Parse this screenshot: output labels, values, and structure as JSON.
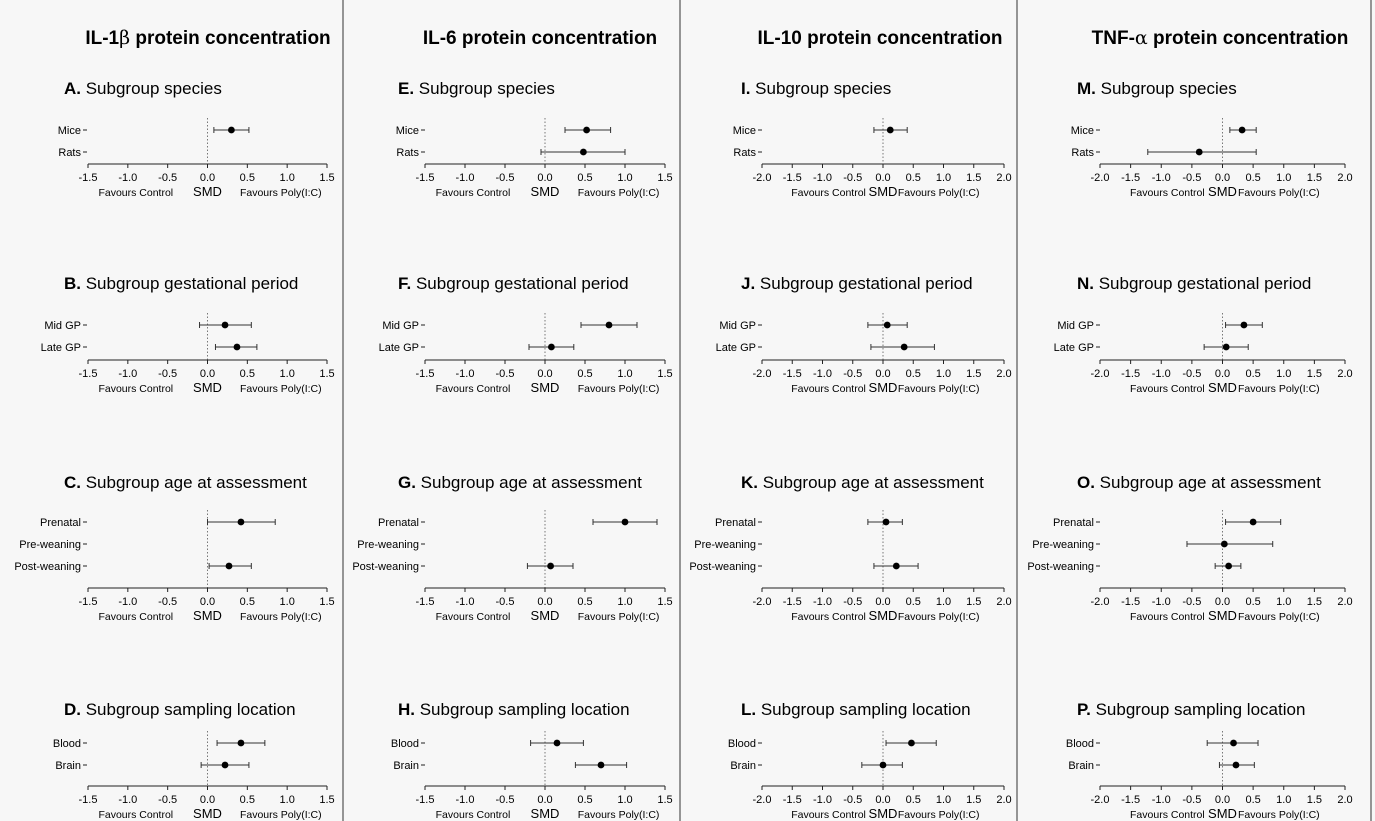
{
  "figure": {
    "columns": [
      {
        "header_pre": "IL-1",
        "header_greek": "β",
        "header_post": " protein concentration"
      },
      {
        "header_pre": "IL-6",
        "header_greek": "",
        "header_post": " protein concentration"
      },
      {
        "header_pre": "IL-10",
        "header_greek": "",
        "header_post": " protein concentration"
      },
      {
        "header_pre": "TNF-",
        "header_greek": "α",
        "header_post": " protein concentration"
      }
    ],
    "footer_left": "Favours Control",
    "footer_mid": "SMD",
    "footer_right": "Favours Poly(I:C)"
  },
  "chart_data": [
    {
      "type": "forest",
      "letter": "A.",
      "title": "Subgroup species",
      "xlim": [
        -1.5,
        1.5
      ],
      "ticks": [
        -1.5,
        -1.0,
        -0.5,
        0.0,
        0.5,
        1.0,
        1.5
      ],
      "rows": [
        {
          "label": "Mice",
          "smd": 0.3,
          "lo": 0.08,
          "hi": 0.52
        },
        {
          "label": "Rats",
          "smd": null,
          "lo": null,
          "hi": null
        }
      ]
    },
    {
      "type": "forest",
      "letter": "B.",
      "title": "Subgroup gestational period",
      "xlim": [
        -1.5,
        1.5
      ],
      "ticks": [
        -1.5,
        -1.0,
        -0.5,
        0.0,
        0.5,
        1.0,
        1.5
      ],
      "rows": [
        {
          "label": "Mid GP",
          "smd": 0.22,
          "lo": -0.1,
          "hi": 0.55
        },
        {
          "label": "Late GP",
          "smd": 0.37,
          "lo": 0.1,
          "hi": 0.62
        }
      ]
    },
    {
      "type": "forest",
      "letter": "C.",
      "title": "Subgroup age at assessment",
      "xlim": [
        -1.5,
        1.5
      ],
      "ticks": [
        -1.5,
        -1.0,
        -0.5,
        0.0,
        0.5,
        1.0,
        1.5
      ],
      "rows": [
        {
          "label": "Prenatal",
          "smd": 0.42,
          "lo": 0.0,
          "hi": 0.85
        },
        {
          "label": "Pre-weaning",
          "smd": null,
          "lo": null,
          "hi": null
        },
        {
          "label": "Post-weaning",
          "smd": 0.27,
          "lo": 0.02,
          "hi": 0.55
        }
      ]
    },
    {
      "type": "forest",
      "letter": "D.",
      "title": "Subgroup sampling location",
      "xlim": [
        -1.5,
        1.5
      ],
      "ticks": [
        -1.5,
        -1.0,
        -0.5,
        0.0,
        0.5,
        1.0,
        1.5
      ],
      "rows": [
        {
          "label": "Blood",
          "smd": 0.42,
          "lo": 0.12,
          "hi": 0.72
        },
        {
          "label": "Brain",
          "smd": 0.22,
          "lo": -0.08,
          "hi": 0.52
        }
      ]
    },
    {
      "type": "forest",
      "letter": "E.",
      "title": "Subgroup species",
      "xlim": [
        -1.5,
        1.5
      ],
      "ticks": [
        -1.5,
        -1.0,
        -0.5,
        0.0,
        0.5,
        1.0,
        1.5
      ],
      "rows": [
        {
          "label": "Mice",
          "smd": 0.52,
          "lo": 0.25,
          "hi": 0.82
        },
        {
          "label": "Rats",
          "smd": 0.48,
          "lo": -0.05,
          "hi": 1.0
        }
      ]
    },
    {
      "type": "forest",
      "letter": "F.",
      "title": "Subgroup gestational period",
      "xlim": [
        -1.5,
        1.5
      ],
      "ticks": [
        -1.5,
        -1.0,
        -0.5,
        0.0,
        0.5,
        1.0,
        1.5
      ],
      "rows": [
        {
          "label": "Mid GP",
          "smd": 0.8,
          "lo": 0.45,
          "hi": 1.15
        },
        {
          "label": "Late GP",
          "smd": 0.08,
          "lo": -0.2,
          "hi": 0.36
        }
      ]
    },
    {
      "type": "forest",
      "letter": "G.",
      "title": "Subgroup age at assessment",
      "xlim": [
        -1.5,
        1.5
      ],
      "ticks": [
        -1.5,
        -1.0,
        -0.5,
        0.0,
        0.5,
        1.0,
        1.5
      ],
      "rows": [
        {
          "label": "Prenatal",
          "smd": 1.0,
          "lo": 0.6,
          "hi": 1.4
        },
        {
          "label": "Pre-weaning",
          "smd": null,
          "lo": null,
          "hi": null
        },
        {
          "label": "Post-weaning",
          "smd": 0.07,
          "lo": -0.22,
          "hi": 0.35
        }
      ]
    },
    {
      "type": "forest",
      "letter": "H.",
      "title": "Subgroup sampling location",
      "xlim": [
        -1.5,
        1.5
      ],
      "ticks": [
        -1.5,
        -1.0,
        -0.5,
        0.0,
        0.5,
        1.0,
        1.5
      ],
      "rows": [
        {
          "label": "Blood",
          "smd": 0.15,
          "lo": -0.18,
          "hi": 0.48
        },
        {
          "label": "Brain",
          "smd": 0.7,
          "lo": 0.38,
          "hi": 1.02
        }
      ]
    },
    {
      "type": "forest",
      "letter": "I.",
      "title": "Subgroup species",
      "xlim": [
        -2.0,
        2.0
      ],
      "ticks": [
        -2.0,
        -1.5,
        -1.0,
        -0.5,
        0.0,
        0.5,
        1.0,
        1.5,
        2.0
      ],
      "rows": [
        {
          "label": "Mice",
          "smd": 0.12,
          "lo": -0.15,
          "hi": 0.4
        },
        {
          "label": "Rats",
          "smd": null,
          "lo": null,
          "hi": null
        }
      ]
    },
    {
      "type": "forest",
      "letter": "J.",
      "title": "Subgroup gestational period",
      "xlim": [
        -2.0,
        2.0
      ],
      "ticks": [
        -2.0,
        -1.5,
        -1.0,
        -0.5,
        0.0,
        0.5,
        1.0,
        1.5,
        2.0
      ],
      "rows": [
        {
          "label": "Mid GP",
          "smd": 0.07,
          "lo": -0.25,
          "hi": 0.4
        },
        {
          "label": "Late GP",
          "smd": 0.35,
          "lo": -0.2,
          "hi": 0.85
        }
      ]
    },
    {
      "type": "forest",
      "letter": "K.",
      "title": "Subgroup age at assessment",
      "xlim": [
        -2.0,
        2.0
      ],
      "ticks": [
        -2.0,
        -1.5,
        -1.0,
        -0.5,
        0.0,
        0.5,
        1.0,
        1.5,
        2.0
      ],
      "rows": [
        {
          "label": "Prenatal",
          "smd": 0.05,
          "lo": -0.25,
          "hi": 0.32
        },
        {
          "label": "Pre-weaning",
          "smd": null,
          "lo": null,
          "hi": null
        },
        {
          "label": "Post-weaning",
          "smd": 0.22,
          "lo": -0.15,
          "hi": 0.58
        }
      ]
    },
    {
      "type": "forest",
      "letter": "L.",
      "title": "Subgroup sampling location",
      "xlim": [
        -2.0,
        2.0
      ],
      "ticks": [
        -2.0,
        -1.5,
        -1.0,
        -0.5,
        0.0,
        0.5,
        1.0,
        1.5,
        2.0
      ],
      "rows": [
        {
          "label": "Blood",
          "smd": 0.47,
          "lo": 0.05,
          "hi": 0.88
        },
        {
          "label": "Brain",
          "smd": 0.0,
          "lo": -0.35,
          "hi": 0.32
        }
      ]
    },
    {
      "type": "forest",
      "letter": "M.",
      "title": "Subgroup species",
      "xlim": [
        -2.0,
        2.0
      ],
      "ticks": [
        -2.0,
        -1.5,
        -1.0,
        -0.5,
        0.0,
        0.5,
        1.0,
        1.5,
        2.0
      ],
      "rows": [
        {
          "label": "Mice",
          "smd": 0.32,
          "lo": 0.12,
          "hi": 0.55
        },
        {
          "label": "Rats",
          "smd": -0.38,
          "lo": -1.22,
          "hi": 0.55
        }
      ]
    },
    {
      "type": "forest",
      "letter": "N.",
      "title": "Subgroup gestational period",
      "xlim": [
        -2.0,
        2.0
      ],
      "ticks": [
        -2.0,
        -1.5,
        -1.0,
        -0.5,
        0.0,
        0.5,
        1.0,
        1.5,
        2.0
      ],
      "rows": [
        {
          "label": "Mid GP",
          "smd": 0.35,
          "lo": 0.05,
          "hi": 0.65
        },
        {
          "label": "Late GP",
          "smd": 0.06,
          "lo": -0.3,
          "hi": 0.42
        }
      ]
    },
    {
      "type": "forest",
      "letter": "O.",
      "title": "Subgroup age at assessment",
      "xlim": [
        -2.0,
        2.0
      ],
      "ticks": [
        -2.0,
        -1.5,
        -1.0,
        -0.5,
        0.0,
        0.5,
        1.0,
        1.5,
        2.0
      ],
      "rows": [
        {
          "label": "Prenatal",
          "smd": 0.5,
          "lo": 0.05,
          "hi": 0.95
        },
        {
          "label": "Pre-weaning",
          "smd": 0.03,
          "lo": -0.58,
          "hi": 0.82
        },
        {
          "label": "Post-weaning",
          "smd": 0.1,
          "lo": -0.12,
          "hi": 0.3
        }
      ]
    },
    {
      "type": "forest",
      "letter": "P.",
      "title": "Subgroup sampling location",
      "xlim": [
        -2.0,
        2.0
      ],
      "ticks": [
        -2.0,
        -1.5,
        -1.0,
        -0.5,
        0.0,
        0.5,
        1.0,
        1.5,
        2.0
      ],
      "rows": [
        {
          "label": "Blood",
          "smd": 0.18,
          "lo": -0.25,
          "hi": 0.58
        },
        {
          "label": "Brain",
          "smd": 0.22,
          "lo": -0.05,
          "hi": 0.52
        }
      ]
    }
  ]
}
